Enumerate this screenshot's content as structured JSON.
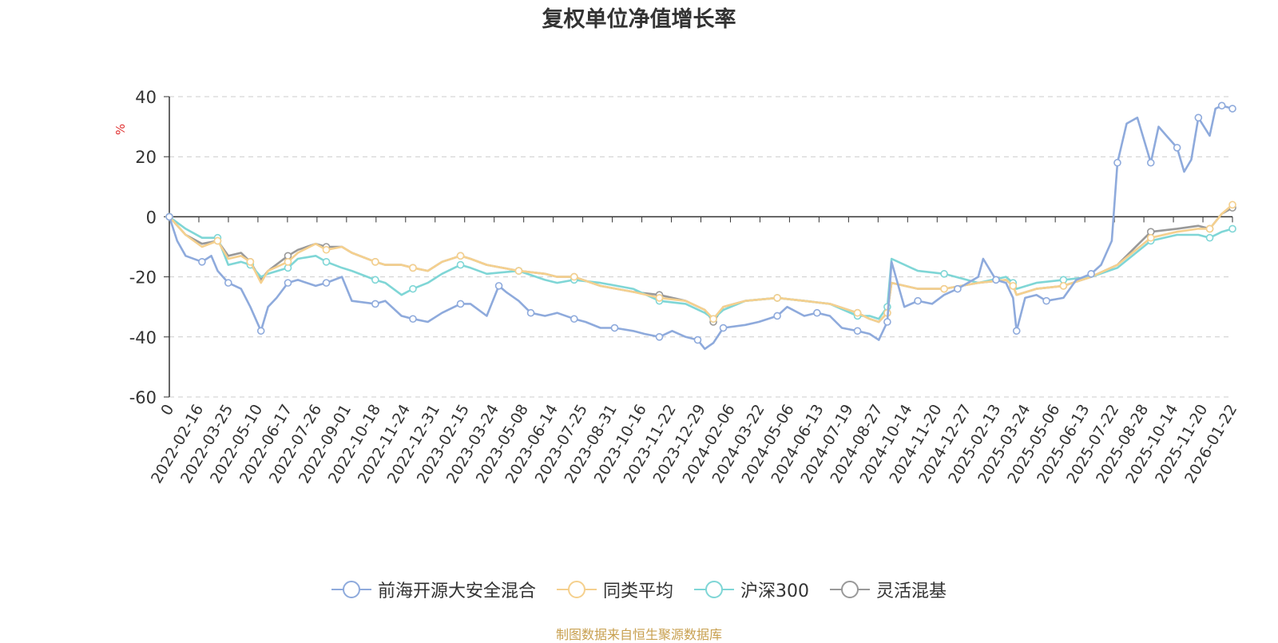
{
  "chart_data": {
    "type": "line",
    "title": "复权单位净值增长率",
    "ylabel": "%",
    "ylim": [
      -60,
      40
    ],
    "yticks": [
      -60,
      -40,
      -20,
      0,
      20,
      40
    ],
    "xlim": [
      "2022-01-01",
      "2026-02-06"
    ],
    "x_tick_labels": [
      "0",
      "2022-02-16",
      "2022-03-25",
      "2022-05-10",
      "2022-06-17",
      "2022-07-26",
      "2022-09-01",
      "2022-10-18",
      "2022-11-24",
      "2022-12-31",
      "2023-02-15",
      "2023-03-24",
      "2023-05-08",
      "2023-06-14",
      "2023-07-25",
      "2023-08-31",
      "2023-10-16",
      "2023-11-22",
      "2023-12-29",
      "2024-02-06",
      "2024-03-22",
      "2024-05-06",
      "2024-06-13",
      "2024-07-19",
      "2024-08-27",
      "2024-10-14",
      "2024-11-20",
      "2024-12-27",
      "2025-02-13",
      "2025-03-24",
      "2025-05-06",
      "2025-06-13",
      "2025-07-22",
      "2025-08-28",
      "2025-10-14",
      "2025-11-20",
      "2026-01-22"
    ],
    "grid": true,
    "legend_position": "bottom",
    "series": [
      {
        "name": "前海开源大安全混合",
        "color": "#8eaadc",
        "x": [
          "2022-01-01",
          "2022-01-12",
          "2022-01-24",
          "2022-02-16",
          "2022-03-01",
          "2022-03-10",
          "2022-03-25",
          "2022-04-12",
          "2022-04-25",
          "2022-05-10",
          "2022-05-20",
          "2022-06-01",
          "2022-06-17",
          "2022-07-01",
          "2022-07-26",
          "2022-08-10",
          "2022-09-01",
          "2022-09-15",
          "2022-10-18",
          "2022-11-01",
          "2022-11-24",
          "2022-12-10",
          "2022-12-31",
          "2023-01-20",
          "2023-02-15",
          "2023-03-01",
          "2023-03-24",
          "2023-04-10",
          "2023-04-20",
          "2023-05-08",
          "2023-05-25",
          "2023-06-14",
          "2023-07-01",
          "2023-07-25",
          "2023-08-10",
          "2023-08-31",
          "2023-09-20",
          "2023-10-16",
          "2023-11-01",
          "2023-11-22",
          "2023-12-10",
          "2023-12-29",
          "2024-01-15",
          "2024-01-25",
          "2024-02-06",
          "2024-02-20",
          "2024-03-22",
          "2024-04-10",
          "2024-05-06",
          "2024-05-20",
          "2024-06-13",
          "2024-07-01",
          "2024-07-19",
          "2024-08-05",
          "2024-08-27",
          "2024-09-13",
          "2024-09-26",
          "2024-10-08",
          "2024-10-14",
          "2024-11-01",
          "2024-11-20",
          "2024-12-10",
          "2024-12-27",
          "2025-01-15",
          "2025-02-13",
          "2025-02-20",
          "2025-03-10",
          "2025-03-24",
          "2025-04-03",
          "2025-04-08",
          "2025-04-20",
          "2025-05-06",
          "2025-05-20",
          "2025-06-13",
          "2025-07-01",
          "2025-07-22",
          "2025-08-05",
          "2025-08-20",
          "2025-08-28",
          "2025-09-10",
          "2025-09-25",
          "2025-10-14",
          "2025-10-25",
          "2025-11-05",
          "2025-11-20",
          "2025-11-30",
          "2025-12-10",
          "2025-12-20",
          "2026-01-05",
          "2026-01-13",
          "2026-01-22",
          "2026-02-06"
        ],
        "y": [
          0,
          -8,
          -13,
          -15,
          -13,
          -18,
          -22,
          -24,
          -30,
          -38,
          -30,
          -27,
          -22,
          -21,
          -23,
          -22,
          -20,
          -28,
          -29,
          -28,
          -33,
          -34,
          -35,
          -32,
          -29,
          -29,
          -33,
          -23,
          -25,
          -28,
          -32,
          -33,
          -32,
          -34,
          -35,
          -37,
          -37,
          -38,
          -39,
          -40,
          -38,
          -40,
          -41,
          -44,
          -42,
          -37,
          -36,
          -35,
          -33,
          -30,
          -33,
          -32,
          -33,
          -37,
          -38,
          -39,
          -41,
          -35,
          -15,
          -30,
          -28,
          -29,
          -26,
          -24,
          -20,
          -14,
          -21,
          -22,
          -27,
          -38,
          -27,
          -26,
          -28,
          -27,
          -21,
          -19,
          -16,
          -8,
          18,
          31,
          33,
          18,
          30,
          27,
          23,
          15,
          19,
          33,
          27,
          36,
          37,
          36
        ]
      },
      {
        "name": "同类平均",
        "color": "#f5d08e",
        "x": [
          "2022-01-01",
          "2022-01-24",
          "2022-02-16",
          "2022-03-10",
          "2022-03-25",
          "2022-04-12",
          "2022-04-25",
          "2022-05-10",
          "2022-05-20",
          "2022-06-17",
          "2022-07-01",
          "2022-07-26",
          "2022-08-10",
          "2022-09-01",
          "2022-09-15",
          "2022-10-18",
          "2022-11-01",
          "2022-11-24",
          "2022-12-10",
          "2022-12-31",
          "2023-01-20",
          "2023-02-15",
          "2023-03-01",
          "2023-03-24",
          "2023-05-08",
          "2023-06-14",
          "2023-07-01",
          "2023-07-25",
          "2023-08-31",
          "2023-10-16",
          "2023-11-22",
          "2023-12-29",
          "2024-01-25",
          "2024-02-06",
          "2024-02-20",
          "2024-03-22",
          "2024-05-06",
          "2024-06-13",
          "2024-07-19",
          "2024-08-27",
          "2024-09-13",
          "2024-09-26",
          "2024-10-08",
          "2024-10-14",
          "2024-11-20",
          "2024-12-27",
          "2025-02-13",
          "2025-03-24",
          "2025-04-03",
          "2025-04-08",
          "2025-05-06",
          "2025-06-13",
          "2025-07-22",
          "2025-08-28",
          "2025-10-14",
          "2025-11-20",
          "2025-12-20",
          "2026-01-05",
          "2026-01-22",
          "2026-02-06"
        ],
        "y": [
          0,
          -6,
          -10,
          -8,
          -14,
          -13,
          -15,
          -22,
          -18,
          -15,
          -12,
          -9,
          -11,
          -10,
          -12,
          -15,
          -16,
          -16,
          -17,
          -18,
          -15,
          -13,
          -14,
          -16,
          -18,
          -19,
          -20,
          -20,
          -23,
          -25,
          -27,
          -28,
          -31,
          -34,
          -30,
          -28,
          -27,
          -28,
          -29,
          -32,
          -34,
          -35,
          -32,
          -22,
          -24,
          -24,
          -22,
          -21,
          -23,
          -26,
          -24,
          -23,
          -20,
          -16,
          -7,
          -5,
          -4,
          -4,
          1,
          4
        ]
      },
      {
        "name": "沪深300",
        "color": "#7fd6d6",
        "x": [
          "2022-01-01",
          "2022-01-24",
          "2022-02-16",
          "2022-03-10",
          "2022-03-25",
          "2022-04-12",
          "2022-04-25",
          "2022-05-10",
          "2022-05-20",
          "2022-06-17",
          "2022-07-01",
          "2022-07-26",
          "2022-08-10",
          "2022-09-01",
          "2022-09-15",
          "2022-10-18",
          "2022-11-01",
          "2022-11-24",
          "2022-12-10",
          "2022-12-31",
          "2023-01-20",
          "2023-02-15",
          "2023-03-01",
          "2023-03-24",
          "2023-05-08",
          "2023-06-14",
          "2023-07-01",
          "2023-07-25",
          "2023-08-31",
          "2023-10-16",
          "2023-11-22",
          "2023-12-29",
          "2024-01-25",
          "2024-02-06",
          "2024-02-20",
          "2024-03-22",
          "2024-05-06",
          "2024-06-13",
          "2024-07-19",
          "2024-08-27",
          "2024-09-13",
          "2024-09-26",
          "2024-10-08",
          "2024-10-14",
          "2024-11-20",
          "2024-12-27",
          "2025-02-13",
          "2025-03-24",
          "2025-04-03",
          "2025-04-08",
          "2025-05-06",
          "2025-06-13",
          "2025-07-22",
          "2025-08-28",
          "2025-10-14",
          "2025-11-20",
          "2025-12-20",
          "2026-01-05",
          "2026-01-22",
          "2026-02-06"
        ],
        "y": [
          0,
          -4,
          -7,
          -7,
          -16,
          -15,
          -16,
          -20,
          -19,
          -17,
          -14,
          -13,
          -15,
          -17,
          -18,
          -21,
          -22,
          -26,
          -24,
          -22,
          -19,
          -16,
          -17,
          -19,
          -18,
          -21,
          -22,
          -21,
          -22,
          -24,
          -28,
          -29,
          -32,
          -34,
          -31,
          -28,
          -27,
          -28,
          -29,
          -33,
          -33,
          -34,
          -30,
          -14,
          -18,
          -19,
          -22,
          -20,
          -22,
          -24,
          -22,
          -21,
          -20,
          -17,
          -8,
          -6,
          -6,
          -7,
          -5,
          -4
        ]
      },
      {
        "name": "灵活混基",
        "color": "#999999",
        "x": [
          "2022-01-01",
          "2022-01-24",
          "2022-02-16",
          "2022-03-10",
          "2022-03-25",
          "2022-04-12",
          "2022-04-25",
          "2022-05-10",
          "2022-05-20",
          "2022-06-17",
          "2022-07-01",
          "2022-07-26",
          "2022-08-10",
          "2022-09-01",
          "2022-09-15",
          "2022-10-18",
          "2022-11-01",
          "2022-11-24",
          "2022-12-10",
          "2022-12-31",
          "2023-01-20",
          "2023-02-15",
          "2023-03-01",
          "2023-03-24",
          "2023-05-08",
          "2023-06-14",
          "2023-07-01",
          "2023-07-25",
          "2023-08-31",
          "2023-10-16",
          "2023-11-22",
          "2023-12-29",
          "2024-01-25",
          "2024-02-06",
          "2024-02-20",
          "2024-03-22",
          "2024-05-06",
          "2024-06-13",
          "2024-07-19",
          "2024-08-27",
          "2024-09-13",
          "2024-09-26",
          "2024-10-08",
          "2024-10-14",
          "2024-11-20",
          "2024-12-27",
          "2025-02-13",
          "2025-03-24",
          "2025-04-03",
          "2025-04-08",
          "2025-05-06",
          "2025-06-13",
          "2025-07-22",
          "2025-08-28",
          "2025-10-14",
          "2025-11-20",
          "2025-12-20",
          "2026-01-05",
          "2026-01-22",
          "2026-02-06"
        ],
        "y": [
          0,
          -6,
          -9,
          -8,
          -13,
          -12,
          -15,
          -21,
          -18,
          -13,
          -11,
          -9,
          -10,
          -10,
          -12,
          -15,
          -16,
          -16,
          -17,
          -18,
          -15,
          -13,
          -14,
          -16,
          -18,
          -19,
          -20,
          -20,
          -23,
          -25,
          -26,
          -28,
          -31,
          -35,
          -30,
          -28,
          -27,
          -28,
          -29,
          -32,
          -34,
          -35,
          -32,
          -22,
          -24,
          -24,
          -22,
          -21,
          -23,
          -26,
          -24,
          -23,
          -20,
          -16,
          -5,
          -4,
          -3,
          -4,
          1,
          3
        ]
      }
    ]
  },
  "source_note": "制图数据来自恒生聚源数据库"
}
